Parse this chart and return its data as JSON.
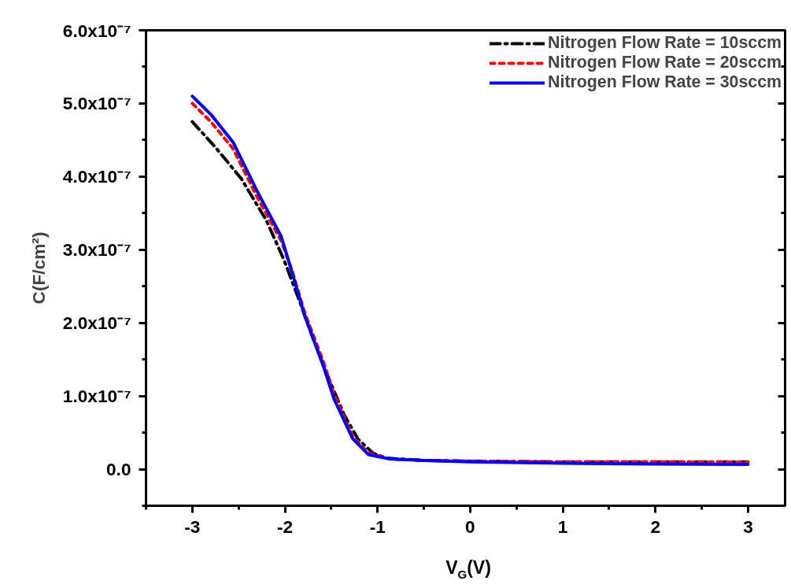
{
  "chart_data": {
    "type": "line",
    "xlabel": "V$_{G}$(V)",
    "ylabel": "C(F/cm²)",
    "xlim": [
      -3.5,
      3.4
    ],
    "ylim": [
      -5e-08,
      6e-07
    ],
    "xticks": [
      {
        "value": -3.5,
        "label": null
      },
      -3,
      {
        "value": -2.5,
        "label": null
      },
      -2,
      {
        "value": -1.5,
        "label": null
      },
      -1,
      {
        "value": -0.5,
        "label": null
      },
      0,
      {
        "value": 0.5,
        "label": null
      },
      1,
      {
        "value": 1.5,
        "label": null
      },
      2,
      {
        "value": 2.5,
        "label": null
      },
      3
    ],
    "yticks": [
      {
        "value": -5e-08,
        "label": null
      },
      {
        "value": 0,
        "label": "0.0"
      },
      {
        "value": 5e-08,
        "label": null
      },
      {
        "value": 1e-07,
        "label": "1.0x10⁻⁷"
      },
      {
        "value": 1.5e-07,
        "label": null
      },
      {
        "value": 2e-07,
        "label": "2.0x10⁻⁷"
      },
      {
        "value": 2.5e-07,
        "label": null
      },
      {
        "value": 3e-07,
        "label": "3.0x10⁻⁷"
      },
      {
        "value": 3.5e-07,
        "label": null
      },
      {
        "value": 4e-07,
        "label": "4.0x10⁻⁷"
      },
      {
        "value": 4.5e-07,
        "label": null
      },
      {
        "value": 5e-07,
        "label": "5.0x10⁻⁷"
      },
      {
        "value": 5.5e-07,
        "label": null
      },
      {
        "value": 6e-07,
        "label": "6.0x10⁻⁷"
      }
    ],
    "grid": false,
    "legend": "top right",
    "marker": "none",
    "series": [
      {
        "name": "Nitrogen Flow Rate = 10sccm",
        "color": "#000000",
        "line_style": "dashdot",
        "x": [
          -3,
          -2.75,
          -2.47,
          -2.2,
          -2.01,
          -1.84,
          -1.7,
          -1.53,
          -1.36,
          -1.21,
          -1.05,
          -0.9,
          -0.5,
          0,
          1,
          2,
          3
        ],
        "values": [
          4.75e-07,
          4.4e-07,
          3.97e-07,
          3.4e-07,
          2.86e-07,
          2.29e-07,
          1.8e-07,
          1.25e-07,
          7.4e-08,
          4.1e-08,
          2.2e-08,
          1.5e-08,
          1.2e-08,
          1.1e-08,
          1e-08,
          1e-08,
          1e-08
        ]
      },
      {
        "name": "Nitrogen Flow Rate = 20sccm",
        "color": "#ff0000",
        "line_style": "dashed",
        "x": [
          -3,
          -2.8,
          -2.56,
          -2.3,
          -2.04,
          -1.92,
          -1.79,
          -1.58,
          -1.47,
          -1.27,
          -1.1,
          -0.87,
          -0.5,
          0,
          1,
          2,
          3
        ],
        "values": [
          5e-07,
          4.75e-07,
          4.38e-07,
          3.72e-07,
          3.12e-07,
          2.7e-07,
          2.15e-07,
          1.45e-07,
          1.02e-07,
          4.5e-08,
          2.2e-08,
          1.4e-08,
          1.2e-08,
          1.1e-08,
          1e-08,
          1e-08,
          9.5e-09
        ]
      },
      {
        "name": "Nitrogen Flow Rate = 30sccm",
        "color": "#0000ff",
        "line_style": "solid",
        "x": [
          -3,
          -2.8,
          -2.56,
          -2.3,
          -2.04,
          -1.92,
          -1.79,
          -1.58,
          -1.47,
          -1.27,
          -1.1,
          -0.87,
          -0.5,
          0,
          1,
          2,
          3
        ],
        "values": [
          5.1e-07,
          4.85e-07,
          4.47e-07,
          3.8e-07,
          3.18e-07,
          2.68e-07,
          2.11e-07,
          1.39e-07,
          9.6e-08,
          4.2e-08,
          2e-08,
          1.4e-08,
          1.2e-08,
          1e-08,
          8e-09,
          7e-09,
          6.5e-09
        ]
      }
    ]
  }
}
